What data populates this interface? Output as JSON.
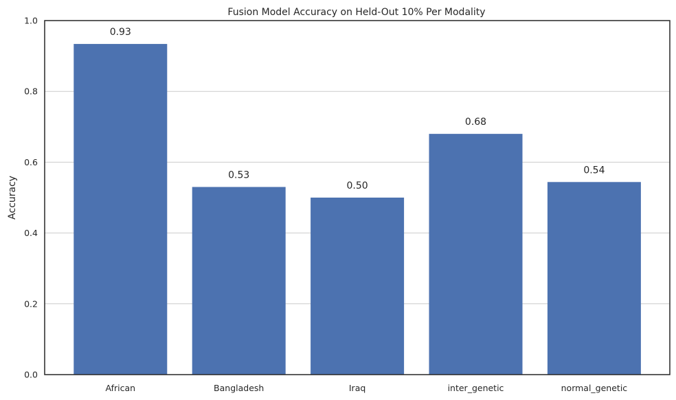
{
  "chart_data": {
    "type": "bar",
    "title": "Fusion Model Accuracy on Held-Out 10% Per Modality",
    "xlabel": "",
    "ylabel": "Accuracy",
    "categories": [
      "African",
      "Bangladesh",
      "Iraq",
      "inter_genetic",
      "normal_genetic"
    ],
    "values": [
      0.934,
      0.53,
      0.5,
      0.68,
      0.544
    ],
    "data_labels": [
      "0.93",
      "0.53",
      "0.50",
      "0.68",
      "0.54"
    ],
    "ylim": [
      0,
      1.0
    ],
    "yticks": [
      0.0,
      0.2,
      0.4,
      0.6,
      0.8,
      1.0
    ],
    "ytick_labels": [
      "0.0",
      "0.2",
      "0.4",
      "0.6",
      "0.8",
      "1.0"
    ],
    "grid": "horizontal",
    "bar_color": "#4c72b0"
  }
}
